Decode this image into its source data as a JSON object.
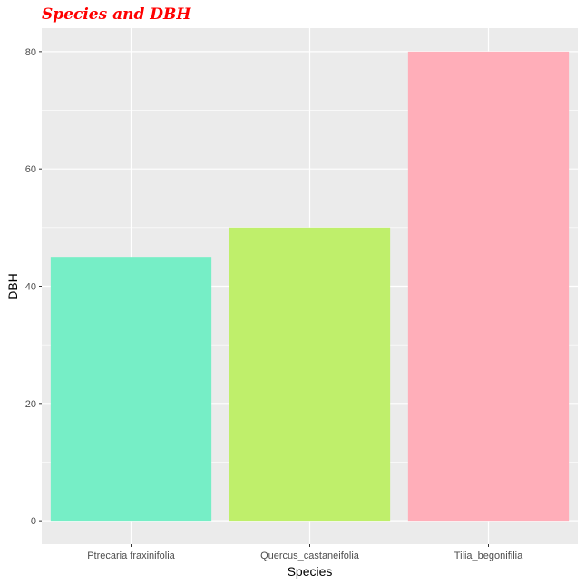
{
  "chart_data": {
    "type": "bar",
    "title": "Species and DBH",
    "xlabel": "Species",
    "ylabel": "DBH",
    "categories": [
      "Ptrecaria fraxinifolia",
      "Quercus_castaneifolia",
      "Tilia_begonifilia"
    ],
    "values": [
      45,
      50,
      80
    ],
    "colors": [
      "#76EEC6",
      "#BFEF6B",
      "#FFAEB9"
    ],
    "ylim": [
      -4,
      84
    ],
    "yticks": [
      0,
      20,
      40,
      60,
      80
    ],
    "grid": true,
    "legend": "none",
    "style": {
      "panel_background": "#EBEBEB",
      "gridline_color": "#FFFFFF",
      "title_color": "#FF0000"
    }
  }
}
